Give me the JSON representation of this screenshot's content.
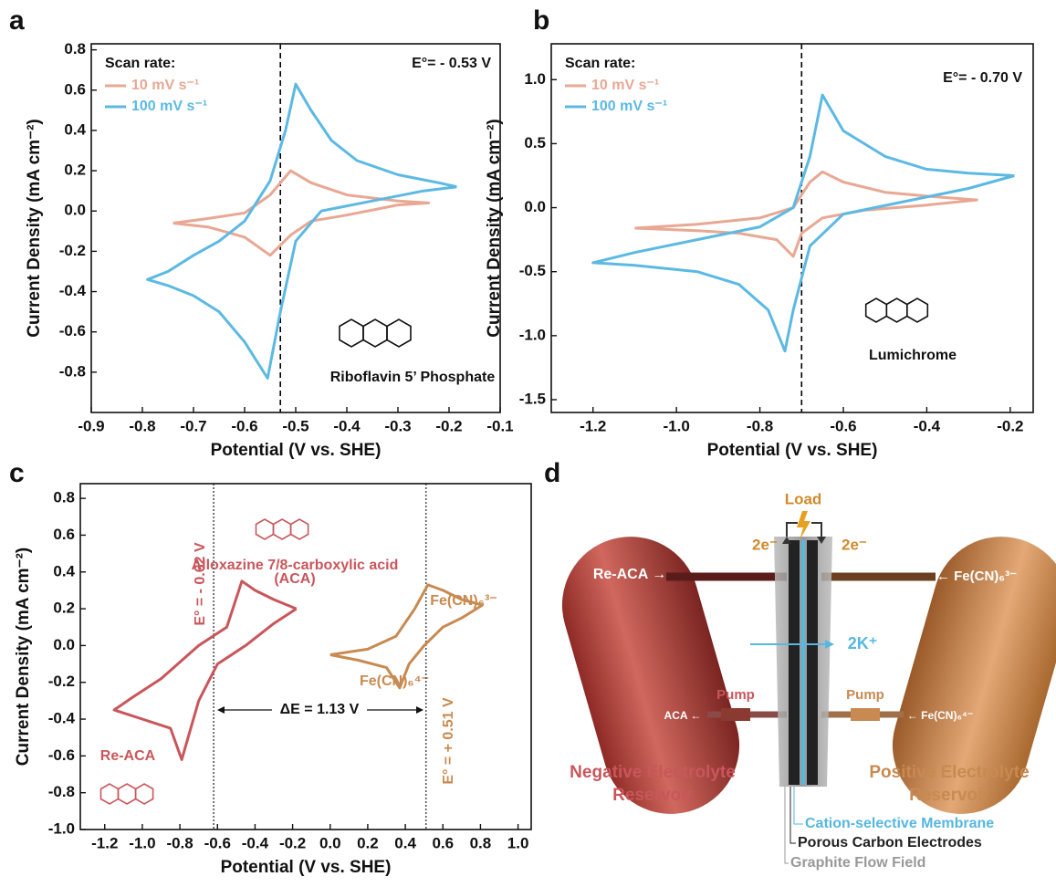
{
  "chart_data": [
    {
      "type": "line",
      "panel_label": "a",
      "x_label": "Potential (V vs. SHE)",
      "y_label": "Current Density (mA cm⁻²)",
      "xlim": [
        -0.9,
        -0.1
      ],
      "ylim": [
        -1.0,
        0.83
      ],
      "xticks": [
        -0.9,
        -0.8,
        -0.7,
        -0.6,
        -0.5,
        -0.4,
        -0.3,
        -0.2,
        -0.1
      ],
      "yticks": [
        0.8,
        0.6,
        0.4,
        0.2,
        {
          "value": 0,
          "label": "0.0"
        },
        -0.2,
        -0.4,
        -0.6,
        -0.8
      ],
      "legend_title": "Scan rate:",
      "series": [
        {
          "name": "10 mV s⁻¹",
          "color": "#e8a893",
          "x": [
            -0.74,
            -0.68,
            -0.6,
            -0.55,
            -0.51,
            -0.47,
            -0.4,
            -0.3,
            -0.24,
            -0.3,
            -0.4,
            -0.47,
            -0.51,
            -0.55,
            -0.6,
            -0.67,
            -0.74
          ],
          "values": [
            -0.06,
            -0.04,
            -0.01,
            0.08,
            0.2,
            0.14,
            0.08,
            0.05,
            0.04,
            0.03,
            -0.02,
            -0.05,
            -0.12,
            -0.22,
            -0.13,
            -0.08,
            -0.06
          ]
        },
        {
          "name": "100 mV s⁻¹",
          "color": "#5bb9e3",
          "x": [
            -0.185,
            -0.25,
            -0.35,
            -0.45,
            -0.5,
            -0.53,
            -0.555,
            -0.6,
            -0.65,
            -0.7,
            -0.75,
            -0.79,
            -0.75,
            -0.7,
            -0.65,
            -0.6,
            -0.55,
            -0.52,
            -0.5,
            -0.47,
            -0.43,
            -0.38,
            -0.3,
            -0.22,
            -0.185
          ],
          "values": [
            0.12,
            0.1,
            0.05,
            0.0,
            -0.15,
            -0.5,
            -0.83,
            -0.65,
            -0.5,
            -0.42,
            -0.37,
            -0.34,
            -0.3,
            -0.22,
            -0.15,
            -0.05,
            0.15,
            0.4,
            0.63,
            0.5,
            0.35,
            0.25,
            0.18,
            0.14,
            0.12
          ]
        }
      ],
      "vlines": [
        {
          "x": -0.53,
          "color": "#000000",
          "style": "dashed"
        }
      ],
      "annotations": [
        "E°= - 0.53 V",
        "Riboflavin 5’ Phosphate"
      ]
    },
    {
      "type": "line",
      "panel_label": "b",
      "x_label": "Potential (V vs. SHE)",
      "y_label": "Current Density (mA cm⁻²)",
      "xlim": [
        -1.3,
        -0.145
      ],
      "ylim": [
        -1.6,
        1.28
      ],
      "xticks": [
        -1.2,
        {
          "value": -1,
          "label": "-1.0"
        },
        -0.8,
        -0.6,
        -0.4,
        -0.2
      ],
      "yticks": [
        {
          "value": 1,
          "label": "1.0"
        },
        0.5,
        {
          "value": 0,
          "label": "0.0"
        },
        -0.5,
        {
          "value": -1,
          "label": "-1.0"
        },
        -1.5
      ],
      "legend_title": "Scan rate:",
      "series": [
        {
          "name": "10 mV s⁻¹",
          "color": "#e8a893",
          "x": [
            -1.1,
            -0.95,
            -0.8,
            -0.72,
            -0.68,
            -0.65,
            -0.6,
            -0.5,
            -0.4,
            -0.28,
            -0.4,
            -0.55,
            -0.65,
            -0.7,
            -0.72,
            -0.76,
            -0.85,
            -0.95,
            -1.1
          ],
          "values": [
            -0.16,
            -0.13,
            -0.08,
            0.0,
            0.2,
            0.28,
            0.2,
            0.12,
            0.09,
            0.06,
            0.02,
            -0.02,
            -0.08,
            -0.2,
            -0.38,
            -0.25,
            -0.2,
            -0.18,
            -0.16
          ]
        },
        {
          "name": "100 mV s⁻¹",
          "color": "#5bb9e3",
          "x": [
            -0.19,
            -0.3,
            -0.45,
            -0.6,
            -0.68,
            -0.72,
            -0.74,
            -0.78,
            -0.85,
            -0.95,
            -1.1,
            -1.2,
            -1.1,
            -0.95,
            -0.8,
            -0.72,
            -0.68,
            -0.65,
            -0.6,
            -0.5,
            -0.4,
            -0.3,
            -0.19
          ],
          "values": [
            0.25,
            0.15,
            0.05,
            -0.05,
            -0.3,
            -0.8,
            -1.12,
            -0.8,
            -0.6,
            -0.5,
            -0.45,
            -0.43,
            -0.35,
            -0.25,
            -0.15,
            0.0,
            0.4,
            0.88,
            0.6,
            0.4,
            0.3,
            0.27,
            0.25
          ]
        }
      ],
      "vlines": [
        {
          "x": -0.7,
          "color": "#000000",
          "style": "dashed"
        }
      ],
      "annotations": [
        "E°= - 0.70 V",
        "Lumichrome"
      ]
    },
    {
      "type": "line",
      "panel_label": "c",
      "x_label": "Potential (V vs. SHE)",
      "y_label": "Current Density (mA cm⁻²)",
      "xlim": [
        -1.33,
        1.07
      ],
      "ylim": [
        -1.0,
        0.88
      ],
      "xticks": [
        -1.2,
        {
          "value": -1,
          "label": "-1.0"
        },
        -0.8,
        -0.6,
        -0.4,
        -0.2,
        {
          "value": 0,
          "label": "0.0"
        },
        0.2,
        0.4,
        0.6,
        0.8,
        {
          "value": 1,
          "label": "1.0"
        }
      ],
      "yticks": [
        0.8,
        0.6,
        0.4,
        0.2,
        {
          "value": 0,
          "label": "0.0"
        },
        -0.2,
        -0.4,
        -0.6,
        -0.8,
        {
          "value": -1,
          "label": "-1.0"
        }
      ],
      "series": [
        {
          "color": "#c9565b",
          "x": [
            -0.18,
            -0.3,
            -0.45,
            -0.6,
            -0.7,
            -0.79,
            -0.85,
            -1.0,
            -1.15,
            -1.05,
            -0.9,
            -0.7,
            -0.55,
            -0.47,
            -0.4,
            -0.3,
            -0.18
          ],
          "values": [
            0.2,
            0.12,
            0.0,
            -0.1,
            -0.3,
            -0.62,
            -0.45,
            -0.4,
            -0.35,
            -0.28,
            -0.18,
            0.0,
            0.1,
            0.35,
            0.3,
            0.25,
            0.2
          ]
        },
        {
          "color": "#c88a50",
          "x": [
            0.0,
            0.2,
            0.35,
            0.45,
            0.52,
            0.6,
            0.7,
            0.81,
            0.7,
            0.6,
            0.5,
            0.42,
            0.37,
            0.3,
            0.15,
            0.0
          ],
          "values": [
            -0.05,
            -0.02,
            0.05,
            0.2,
            0.33,
            0.3,
            0.25,
            0.22,
            0.15,
            0.1,
            0.0,
            -0.1,
            -0.23,
            -0.12,
            -0.08,
            -0.05
          ]
        }
      ],
      "vlines": [
        {
          "x": -0.62,
          "color": "#555555",
          "style": "dotted"
        },
        {
          "x": 0.51,
          "color": "#555555",
          "style": "dotted"
        }
      ],
      "annotations": [
        "E° = - 0.62 V",
        "E° = + 0.51 V",
        "ΔE = 1.13 V",
        "Alloxazine 7/8-carboxylic acid",
        "(ACA)",
        "Re-ACA",
        "Fe(CN)₆³⁻",
        "Fe(CN)₆⁴⁻"
      ]
    }
  ],
  "diagram": {
    "panel_label": "d",
    "load": "Load",
    "electron_left": "2e⁻",
    "electron_right": "2e⁻",
    "negative_in": "Re-ACA →",
    "positive_in": "← Fe(CN)₆³⁻",
    "ion": "2K⁺",
    "pump_left": "Pump",
    "pump_right": "Pump",
    "negative_out": "ACA ←",
    "positive_out": "← Fe(CN)₆⁴⁻",
    "negative_reservoir": [
      "Negative Electrolyte",
      "Reservoir"
    ],
    "positive_reservoir": [
      "Positive Electrolyte",
      "Reservoir"
    ],
    "membrane": "Cation-selective Membrane",
    "electrodes": "Porous Carbon Electrodes",
    "flow_field": "Graphite Flow Field"
  }
}
